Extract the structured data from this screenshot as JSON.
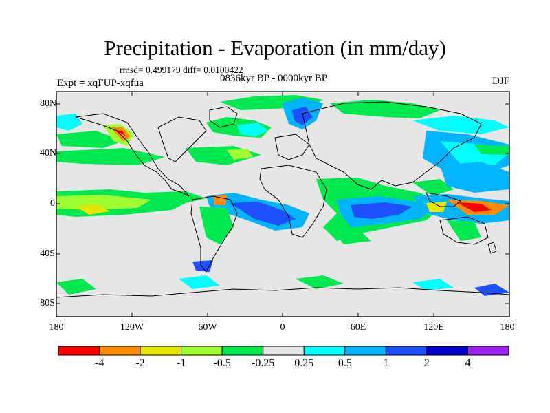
{
  "title": "Precipitation - Evaporation (in mm/day)",
  "stats": "rmsd= 0.499179 diff= 0.0100422",
  "left_label": "Expt = xqFUP-xqfua",
  "center_label": "0836kyr BP - 0000kyr BP",
  "right_label": "DJF",
  "map": {
    "lat_ticks": [
      "80N",
      "40N",
      "0",
      "40S",
      "80S"
    ],
    "lon_ticks": [
      "180",
      "120W",
      "60W",
      "0",
      "60E",
      "120E",
      "180"
    ]
  },
  "colorbar": {
    "labels": [
      "-4",
      "-2",
      "-1",
      "-0.5",
      "-0.25",
      "0.25",
      "0.5",
      "1",
      "2",
      "4"
    ],
    "colors": [
      "#ff0000",
      "#ff8c00",
      "#e6e600",
      "#a0ff30",
      "#00e850",
      "#e6e6e6",
      "#00ffff",
      "#00b4ff",
      "#1e50ff",
      "#0000c8",
      "#a020f0"
    ]
  }
}
